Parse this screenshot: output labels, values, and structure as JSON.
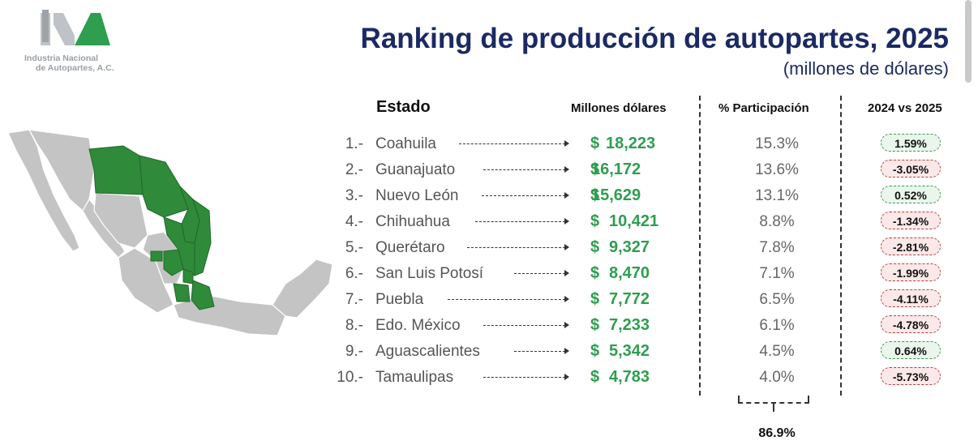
{
  "logo": {
    "line1": "Industria Nacional",
    "line2": "de Autopartes, A.C.",
    "color_green": "#2e9e4f",
    "color_gray": "#b9bcc0"
  },
  "title": "Ranking de producción de autopartes, 2025",
  "subtitle": "(millones de dólares)",
  "headers": {
    "estado": "Estado",
    "millones": "Millones dólares",
    "participacion": "% Participación",
    "vs": "2024 vs 2025"
  },
  "chart_data": {
    "type": "table",
    "title": "Ranking de producción de autopartes, 2025",
    "subtitle": "(millones de dólares)",
    "columns": [
      "Estado",
      "Millones dólares",
      "% Participación",
      "2024 vs 2025"
    ],
    "rows": [
      {
        "rank": "1.-",
        "state": "Coahuila",
        "value": "18,223",
        "share": "15.3%",
        "change": "1.59%",
        "trend": "pos"
      },
      {
        "rank": "2.-",
        "state": "Guanajuato",
        "value": "16,172",
        "share": "13.6%",
        "change": "-3.05%",
        "trend": "neg"
      },
      {
        "rank": "3.-",
        "state": "Nuevo León",
        "value": "15,629",
        "share": "13.1%",
        "change": "0.52%",
        "trend": "pos"
      },
      {
        "rank": "4.-",
        "state": "Chihuahua",
        "value": "10,421",
        "share": "8.8%",
        "change": "-1.34%",
        "trend": "neg"
      },
      {
        "rank": "5.-",
        "state": "Querétaro",
        "value": "9,327",
        "share": "7.8%",
        "change": "-2.81%",
        "trend": "neg"
      },
      {
        "rank": "6.-",
        "state": "San Luis Potosí",
        "value": "8,470",
        "share": "7.1%",
        "change": "-1.99%",
        "trend": "neg"
      },
      {
        "rank": "7.-",
        "state": "Puebla",
        "value": "7,772",
        "share": "6.5%",
        "change": "-4.11%",
        "trend": "neg"
      },
      {
        "rank": "8.-",
        "state": "Edo. México",
        "value": "7,233",
        "share": "6.1%",
        "change": "-4.78%",
        "trend": "neg"
      },
      {
        "rank": "9.-",
        "state": "Aguascalientes",
        "value": "5,342",
        "share": "4.5%",
        "change": "0.64%",
        "trend": "pos"
      },
      {
        "rank": "10.-",
        "state": "Tamaulipas",
        "value": "4,783",
        "share": "4.0%",
        "change": "-5.73%",
        "trend": "neg"
      }
    ],
    "total_share": "86.9%",
    "currency_symbol": "$"
  },
  "colors": {
    "title": "#1b2a63",
    "value_green": "#2e9e4f",
    "positive": "#3a9b50",
    "negative": "#c63b3b",
    "map_highlight": "#2f8a3a",
    "map_base": "#c4c4c4"
  }
}
